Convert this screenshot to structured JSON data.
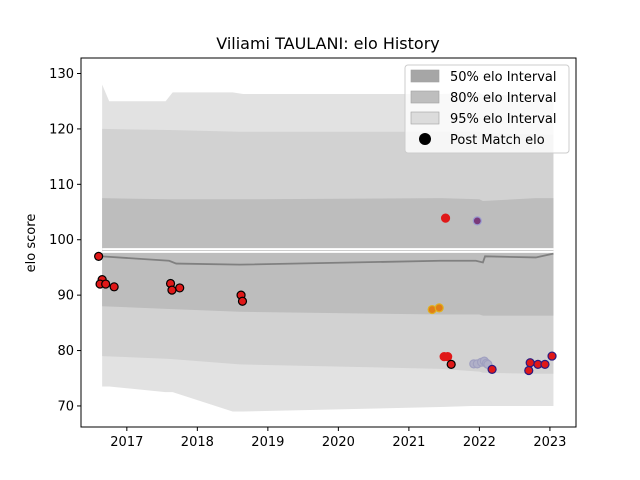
{
  "chart_data": {
    "type": "scatter",
    "title": "Viliami TAULANI: elo History",
    "xlabel": "",
    "ylabel": "elo score",
    "xlim": [
      2016.35,
      2023.37
    ],
    "ylim": [
      66.2,
      132.8
    ],
    "xticks": [
      2017,
      2018,
      2019,
      2020,
      2021,
      2022,
      2023
    ],
    "xtick_labels": [
      "2017",
      "2018",
      "2019",
      "2020",
      "2021",
      "2022",
      "2023"
    ],
    "yticks": [
      70,
      80,
      90,
      100,
      110,
      120,
      130
    ],
    "ytick_labels": [
      "70",
      "80",
      "90",
      "100",
      "110",
      "120",
      "130"
    ],
    "grid": false,
    "legend_position": "top-right",
    "legend": [
      {
        "label": "50% elo Interval",
        "kind": "patch",
        "color": "#a6a6a6"
      },
      {
        "label": "80% elo Interval",
        "kind": "patch",
        "color": "#bebebe"
      },
      {
        "label": "95% elo Interval",
        "kind": "patch",
        "color": "#dcdcdc"
      },
      {
        "label": "Post Match elo",
        "kind": "marker",
        "color": "#000000"
      }
    ],
    "bands": [
      {
        "name": "95% elo Interval",
        "color": "#e2e2e2",
        "x": [
          2016.65,
          2016.75,
          2017.55,
          2017.65,
          2018.5,
          2018.65,
          2021.45,
          2021.9,
          2022.0,
          2022.05,
          2022.7,
          2023.05
        ],
        "upper": [
          128,
          125,
          125,
          126.6,
          126.6,
          126.3,
          126.3,
          126.5,
          126.5,
          126.2,
          126,
          126
        ],
        "lower": [
          73.5,
          73.5,
          72.5,
          72.5,
          69,
          69,
          69.8,
          70,
          70,
          70,
          70,
          70
        ]
      },
      {
        "name": "80% elo Interval",
        "color": "#d2d2d2",
        "x": [
          2016.65,
          2017.6,
          2018.6,
          2021.45,
          2022.0,
          2022.05,
          2022.8,
          2023.05
        ],
        "upper": [
          120,
          119.8,
          119.5,
          119.5,
          119.5,
          119.3,
          119,
          119
        ],
        "lower": [
          79,
          78.5,
          77.5,
          76.7,
          76.2,
          76,
          75.8,
          75.8
        ]
      },
      {
        "name": "50% elo Interval",
        "color": "#bdbdbd",
        "x": [
          2016.65,
          2017.6,
          2018.6,
          2021.45,
          2022.0,
          2022.05,
          2022.8,
          2023.05
        ],
        "upper": [
          107.5,
          107.3,
          107.3,
          107.5,
          107.3,
          107.0,
          107.5,
          107.5
        ],
        "lower": [
          88,
          87.5,
          87,
          86.5,
          86.5,
          86.3,
          86.3,
          86.3
        ]
      }
    ],
    "median_line": {
      "x": [
        2016.65,
        2017.6,
        2017.7,
        2018.6,
        2021.45,
        2021.95,
        2022.05,
        2022.08,
        2022.8,
        2023.05
      ],
      "y": [
        97,
        96.2,
        95.7,
        95.5,
        96.2,
        96.2,
        95.9,
        97,
        96.8,
        97.5
      ]
    },
    "white_lines": [
      {
        "x": [
          2016.65,
          2023.05
        ],
        "y": [
          97.8,
          97.8
        ]
      },
      {
        "x": [
          2016.65,
          2023.05
        ],
        "y": [
          98.3,
          98.3
        ]
      }
    ],
    "points": [
      {
        "x": 2016.6,
        "y": 97.0,
        "fill": "#e01818",
        "edge": "#000000"
      },
      {
        "x": 2016.65,
        "y": 92.8,
        "fill": "#e01818",
        "edge": "#000000"
      },
      {
        "x": 2016.62,
        "y": 92.0,
        "fill": "#e01818",
        "edge": "#000000"
      },
      {
        "x": 2016.7,
        "y": 92.0,
        "fill": "#e01818",
        "edge": "#000000"
      },
      {
        "x": 2016.82,
        "y": 91.5,
        "fill": "#e01818",
        "edge": "#000000"
      },
      {
        "x": 2017.62,
        "y": 92.1,
        "fill": "#e01818",
        "edge": "#000000"
      },
      {
        "x": 2017.64,
        "y": 90.9,
        "fill": "#e01818",
        "edge": "#000000"
      },
      {
        "x": 2017.75,
        "y": 91.3,
        "fill": "#e01818",
        "edge": "#000000"
      },
      {
        "x": 2018.62,
        "y": 90.0,
        "fill": "#e01818",
        "edge": "#000000"
      },
      {
        "x": 2018.64,
        "y": 88.9,
        "fill": "#e01818",
        "edge": "#000000"
      },
      {
        "x": 2021.33,
        "y": 87.4,
        "fill": "#e07e18",
        "edge": "#e0b020"
      },
      {
        "x": 2021.43,
        "y": 87.7,
        "fill": "#e07e18",
        "edge": "#e0b020"
      },
      {
        "x": 2021.52,
        "y": 103.9,
        "fill": "#e01818",
        "edge": "#e01818"
      },
      {
        "x": 2021.5,
        "y": 78.9,
        "fill": "#e01818",
        "edge": "#e01818"
      },
      {
        "x": 2021.55,
        "y": 78.9,
        "fill": "#e01818",
        "edge": "#e01818"
      },
      {
        "x": 2021.6,
        "y": 77.5,
        "fill": "#e01818",
        "edge": "#000000"
      },
      {
        "x": 2021.97,
        "y": 103.4,
        "fill": "#7a3a7a",
        "edge": "#9a9ad0"
      },
      {
        "x": 2021.92,
        "y": 77.6,
        "fill": "#b0b0c8",
        "edge": "#a0a0c0"
      },
      {
        "x": 2021.97,
        "y": 77.6,
        "fill": "#b0b0c8",
        "edge": "#a0a0c0"
      },
      {
        "x": 2022.03,
        "y": 77.9,
        "fill": "#b0b0c8",
        "edge": "#a0a0c0"
      },
      {
        "x": 2022.07,
        "y": 78.1,
        "fill": "#b0b0c8",
        "edge": "#a0a0c0"
      },
      {
        "x": 2022.1,
        "y": 77.7,
        "fill": "#b0b0c8",
        "edge": "#a0a0c0"
      },
      {
        "x": 2022.12,
        "y": 77.5,
        "fill": "#b0b0c8",
        "edge": "#a0a0c0"
      },
      {
        "x": 2022.18,
        "y": 76.6,
        "fill": "#e01818",
        "edge": "#2a1a80"
      },
      {
        "x": 2022.7,
        "y": 76.4,
        "fill": "#e01818",
        "edge": "#2a1a80"
      },
      {
        "x": 2022.72,
        "y": 77.8,
        "fill": "#e01818",
        "edge": "#2a1a80"
      },
      {
        "x": 2022.83,
        "y": 77.5,
        "fill": "#e01818",
        "edge": "#2a1a80"
      },
      {
        "x": 2022.93,
        "y": 77.5,
        "fill": "#e01818",
        "edge": "#2a1a80"
      },
      {
        "x": 2023.03,
        "y": 79.0,
        "fill": "#e01818",
        "edge": "#2a1a80"
      }
    ]
  }
}
